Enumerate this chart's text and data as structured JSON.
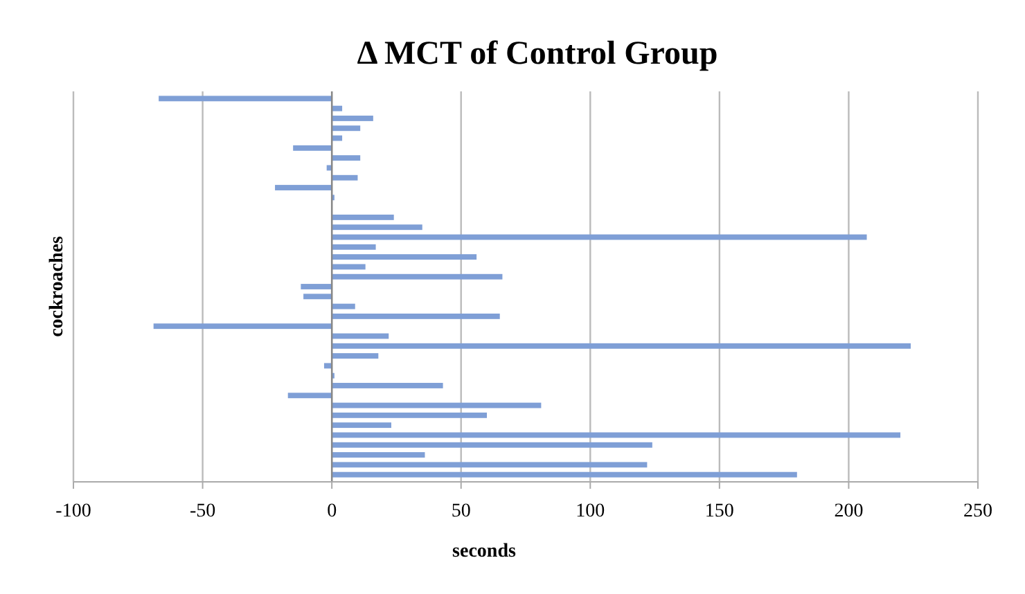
{
  "chart_data": {
    "type": "bar",
    "orientation": "horizontal",
    "title": "Δ MCT of Control Group",
    "xlabel": "seconds",
    "ylabel": "cockroaches",
    "categories": [
      null,
      null,
      null,
      null,
      null,
      null,
      null,
      null,
      null,
      null,
      null,
      null,
      null,
      null,
      null,
      null,
      null,
      null,
      null,
      null,
      null,
      null,
      null,
      null,
      null,
      null,
      null,
      null,
      null,
      null,
      null,
      null,
      null,
      null,
      null,
      null,
      null,
      null,
      null
    ],
    "values": [
      -67,
      4,
      16,
      11,
      4,
      -15,
      11,
      -2,
      10,
      -22,
      1,
      0,
      24,
      35,
      207,
      17,
      56,
      13,
      66,
      -12,
      -11,
      9,
      65,
      -69,
      22,
      224,
      18,
      -3,
      1,
      43,
      -17,
      81,
      60,
      23,
      220,
      124,
      36,
      122,
      180
    ],
    "color": "#7f9fd6",
    "xlim": [
      -100,
      250
    ],
    "xticks": [
      -100,
      -50,
      0,
      50,
      100,
      150,
      200,
      250
    ],
    "grid": "x"
  }
}
